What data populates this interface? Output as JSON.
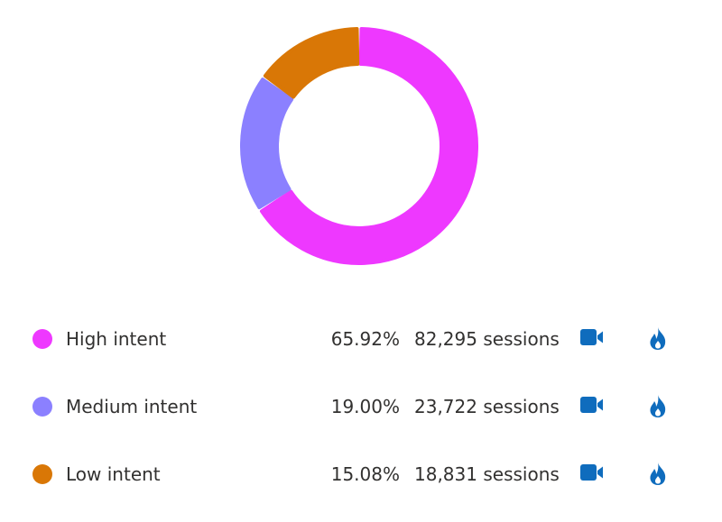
{
  "chart_data": {
    "type": "pie",
    "variant": "donut",
    "categories": [
      "High intent",
      "Medium intent",
      "Low intent"
    ],
    "percentages": [
      65.92,
      19.0,
      15.08
    ],
    "sessions": [
      82295,
      23722,
      18831
    ],
    "colors": [
      "#ee38ff",
      "#8b80ff",
      "#d97706"
    ],
    "legend_placement": "bottom"
  },
  "legend": [
    {
      "label": "High intent",
      "percent_text": "65.92%",
      "sessions_text": "82,295 sessions",
      "color": "#ee38ff",
      "video_icon": "video-camera-icon",
      "fire_icon": "fire-icon"
    },
    {
      "label": "Medium intent",
      "percent_text": "19.00%",
      "sessions_text": "23,722 sessions",
      "color": "#8b80ff",
      "video_icon": "video-camera-icon",
      "fire_icon": "fire-icon"
    },
    {
      "label": "Low intent",
      "percent_text": "15.08%",
      "sessions_text": "18,831 sessions",
      "color": "#d97706",
      "video_icon": "video-camera-icon",
      "fire_icon": "fire-icon"
    }
  ],
  "icon_color": "#0f6cbd"
}
